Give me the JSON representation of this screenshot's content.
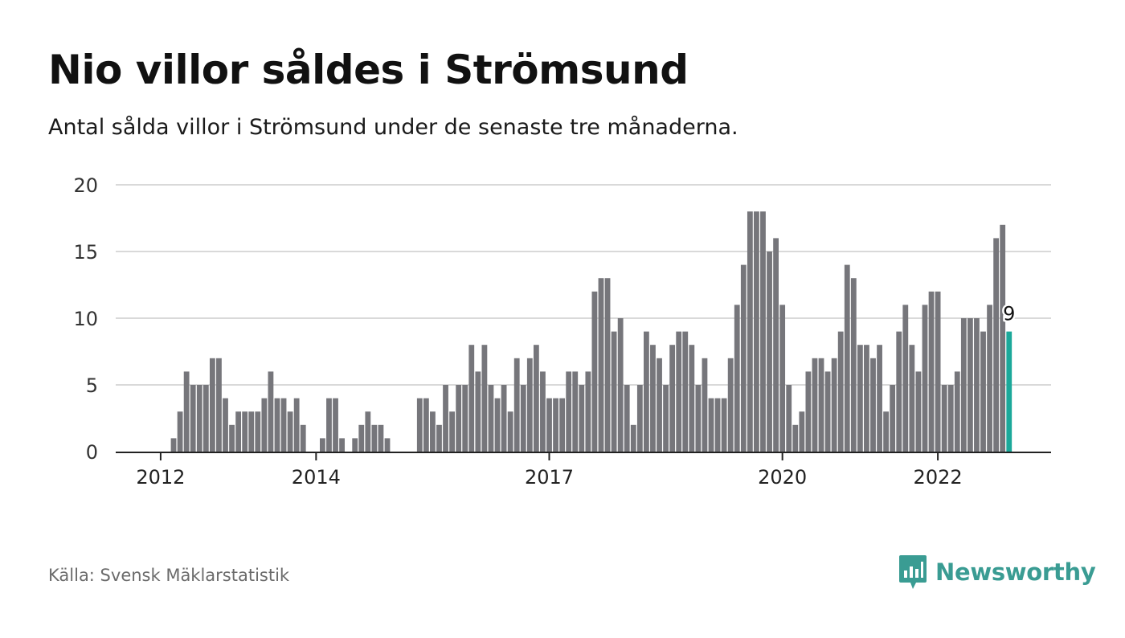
{
  "title": "Nio villor såldes i Strömsund",
  "subtitle": "Antal sålda villor i Strömsund under de senaste tre månaderna.",
  "source": "Källa: Svensk Mäklarstatistik",
  "logo": {
    "text": "Newsworthy",
    "icon": "newsworthy-chart-bubble-icon"
  },
  "colors": {
    "bar": "#76767b",
    "highlight": "#1ba89a",
    "grid": "#d9d9d9",
    "axis": "#222222",
    "brand": "#3a9c93"
  },
  "chart_data": {
    "type": "bar",
    "ylim": [
      0,
      20
    ],
    "yticks": [
      0,
      5,
      10,
      15,
      20
    ],
    "grid": true,
    "xtick_labels": [
      {
        "label": "2012",
        "index": 0
      },
      {
        "label": "2014",
        "index": 24
      },
      {
        "label": "2017",
        "index": 60
      },
      {
        "label": "2020",
        "index": 96
      },
      {
        "label": "2022",
        "index": 120
      }
    ],
    "data_label": {
      "index": 131,
      "text": "9"
    },
    "highlight_index": 131,
    "values": [
      0,
      0,
      1,
      3,
      6,
      5,
      5,
      5,
      7,
      7,
      4,
      2,
      3,
      3,
      3,
      3,
      4,
      6,
      4,
      4,
      3,
      4,
      2,
      0,
      0,
      1,
      4,
      4,
      1,
      0,
      1,
      2,
      3,
      2,
      2,
      1,
      0,
      0,
      0,
      0,
      4,
      4,
      3,
      2,
      5,
      3,
      5,
      5,
      8,
      6,
      8,
      5,
      4,
      5,
      3,
      7,
      5,
      7,
      8,
      6,
      4,
      4,
      4,
      6,
      6,
      5,
      6,
      12,
      13,
      13,
      9,
      10,
      5,
      2,
      5,
      9,
      8,
      7,
      5,
      8,
      9,
      9,
      8,
      5,
      7,
      4,
      4,
      4,
      7,
      11,
      14,
      18,
      18,
      18,
      15,
      16,
      11,
      5,
      2,
      3,
      6,
      7,
      7,
      6,
      7,
      9,
      14,
      13,
      8,
      8,
      7,
      8,
      3,
      5,
      9,
      11,
      8,
      6,
      11,
      12,
      12,
      5,
      5,
      6,
      10,
      10,
      10,
      9,
      11,
      16,
      17,
      9
    ]
  }
}
